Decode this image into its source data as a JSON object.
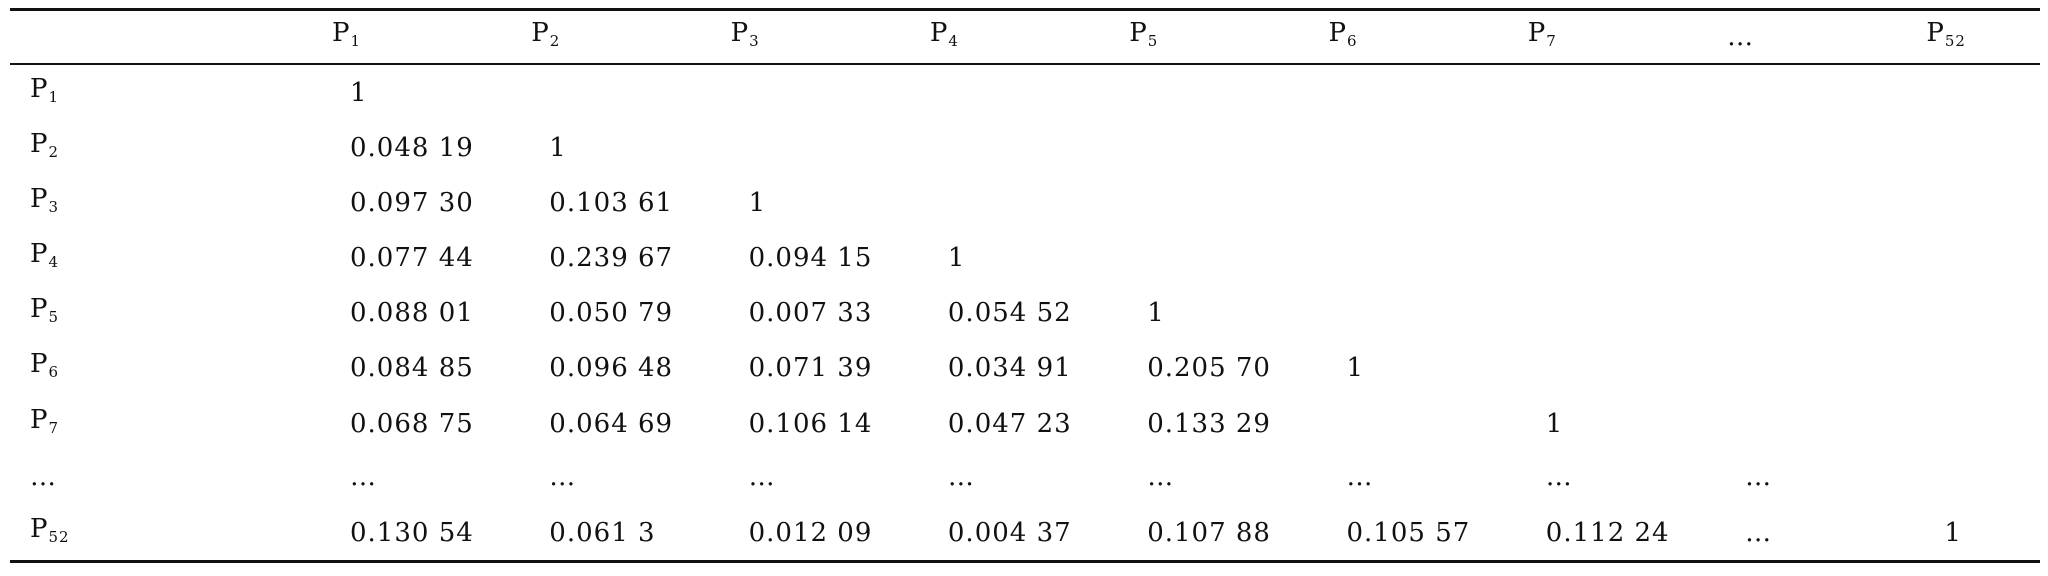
{
  "table": {
    "columns": [
      {
        "text": "P",
        "sub": "1"
      },
      {
        "text": "P",
        "sub": "2"
      },
      {
        "text": "P",
        "sub": "3"
      },
      {
        "text": "P",
        "sub": "4"
      },
      {
        "text": "P",
        "sub": "5"
      },
      {
        "text": "P",
        "sub": "6"
      },
      {
        "text": "P",
        "sub": "7"
      },
      {
        "text": "…"
      },
      {
        "text": "P",
        "sub": "52"
      }
    ],
    "rows": [
      {
        "label": {
          "text": "P",
          "sub": "1"
        },
        "cells": [
          "1"
        ]
      },
      {
        "label": {
          "text": "P",
          "sub": "2"
        },
        "cells": [
          "0.048 19",
          "1"
        ]
      },
      {
        "label": {
          "text": "P",
          "sub": "3"
        },
        "cells": [
          "0.097 30",
          "0.103 61",
          "1"
        ]
      },
      {
        "label": {
          "text": "P",
          "sub": "4"
        },
        "cells": [
          "0.077 44",
          "0.239 67",
          "0.094 15",
          "1"
        ]
      },
      {
        "label": {
          "text": "P",
          "sub": "5"
        },
        "cells": [
          "0.088 01",
          "0.050 79",
          "0.007 33",
          "0.054 52",
          "1"
        ]
      },
      {
        "label": {
          "text": "P",
          "sub": "6"
        },
        "cells": [
          "0.084 85",
          "0.096 48",
          "0.071 39",
          "0.034 91",
          "0.205 70",
          "1"
        ]
      },
      {
        "label": {
          "text": "P",
          "sub": "7"
        },
        "cells": [
          "0.068 75",
          "0.064 69",
          "0.106 14",
          "0.047 23",
          "0.133 29",
          null,
          "1"
        ]
      },
      {
        "label": {
          "text": "…"
        },
        "cells": [
          "…",
          "…",
          "…",
          "…",
          "…",
          "…",
          "…",
          "…"
        ]
      },
      {
        "label": {
          "text": "P",
          "sub": "52"
        },
        "cells": [
          "0.130 54",
          "0.061 3",
          "0.012 09",
          "0.004 37",
          "0.107 88",
          "0.105 57",
          "0.112 24",
          "…",
          "1"
        ]
      }
    ]
  }
}
